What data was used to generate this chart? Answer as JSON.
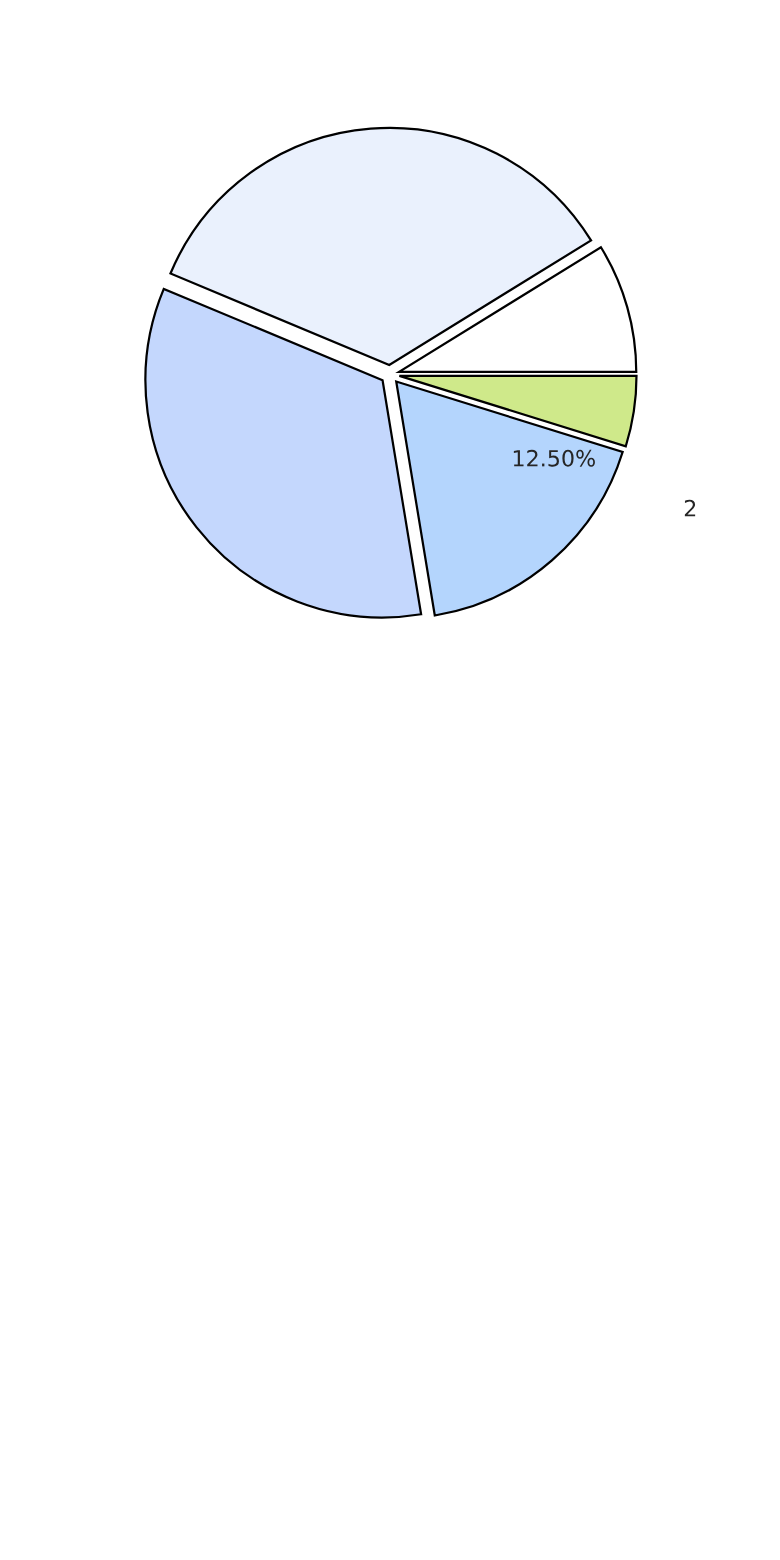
{
  "chart_data": {
    "type": "pie",
    "categories": [
      null,
      null,
      null,
      null,
      null
    ],
    "values": [
      8.8,
      34.9,
      33.9,
      17.6,
      4.8
    ],
    "colors": [
      "#ffffff",
      "#eaf1fd",
      "#c4d7fd",
      "#b4d5fd",
      "#cfe98a"
    ],
    "annotations": [
      "12.50%",
      "2"
    ]
  }
}
